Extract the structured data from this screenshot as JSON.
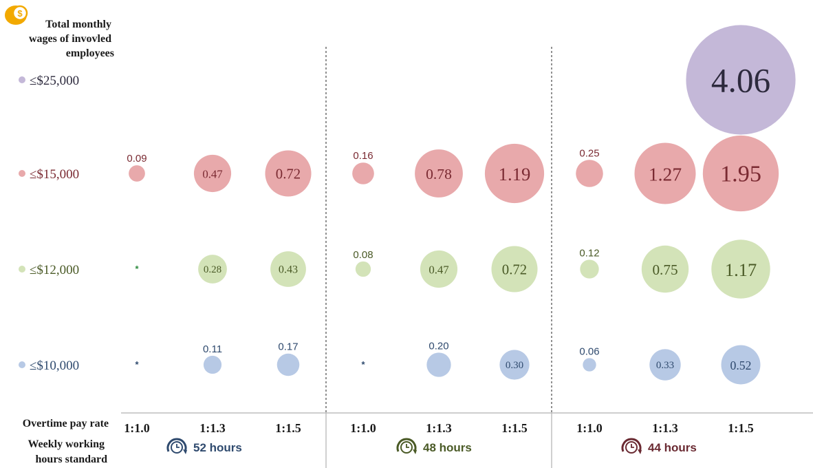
{
  "chart_data": {
    "type": "bubble",
    "legend_title": [
      "Total monthly",
      "wages of invovled",
      "employees"
    ],
    "rows": [
      {
        "label": "≤$25,000",
        "color": "#c4b8d8",
        "text_color": "#2d2a3d"
      },
      {
        "label": "≤$15,000",
        "color": "#e8a9ab",
        "text_color": "#7a2a32"
      },
      {
        "label": "≤$12,000",
        "color": "#d3e3b8",
        "text_color": "#4a5a26"
      },
      {
        "label": "≤$10,000",
        "color": "#b7c9e5",
        "text_color": "#2f4a6e"
      }
    ],
    "overtime_axis_title": "Overtime pay rate",
    "weekly_axis_title": [
      "Weekly working",
      "hours standard"
    ],
    "groups": [
      {
        "label": "52 hours",
        "color": "#2f4a6e",
        "rates": [
          "1:1.0",
          "1:1.3",
          "1:1.5"
        ]
      },
      {
        "label": "48 hours",
        "color": "#4a5a26",
        "rates": [
          "1:1.0",
          "1:1.3",
          "1:1.5"
        ]
      },
      {
        "label": "44 hours",
        "color": "#6a2a32",
        "rates": [
          "1:1.0",
          "1:1.3",
          "1:1.5"
        ]
      }
    ],
    "points": [
      {
        "group": 0,
        "rate": 0,
        "row": 1,
        "value": 0.09,
        "label": "0.09"
      },
      {
        "group": 0,
        "rate": 1,
        "row": 1,
        "value": 0.47,
        "label": "0.47"
      },
      {
        "group": 0,
        "rate": 2,
        "row": 1,
        "value": 0.72,
        "label": "0.72"
      },
      {
        "group": 1,
        "rate": 0,
        "row": 1,
        "value": 0.16,
        "label": "0.16"
      },
      {
        "group": 1,
        "rate": 1,
        "row": 1,
        "value": 0.78,
        "label": "0.78"
      },
      {
        "group": 1,
        "rate": 2,
        "row": 1,
        "value": 1.19,
        "label": "1.19"
      },
      {
        "group": 2,
        "rate": 0,
        "row": 1,
        "value": 0.25,
        "label": "0.25"
      },
      {
        "group": 2,
        "rate": 1,
        "row": 1,
        "value": 1.27,
        "label": "1.27"
      },
      {
        "group": 2,
        "rate": 2,
        "row": 1,
        "value": 1.95,
        "label": "1.95"
      },
      {
        "group": 0,
        "rate": 0,
        "row": 2,
        "value": 0.0,
        "label": ""
      },
      {
        "group": 0,
        "rate": 1,
        "row": 2,
        "value": 0.28,
        "label": "0.28"
      },
      {
        "group": 0,
        "rate": 2,
        "row": 2,
        "value": 0.43,
        "label": "0.43"
      },
      {
        "group": 1,
        "rate": 0,
        "row": 2,
        "value": 0.08,
        "label": "0.08"
      },
      {
        "group": 1,
        "rate": 1,
        "row": 2,
        "value": 0.47,
        "label": "0.47"
      },
      {
        "group": 1,
        "rate": 2,
        "row": 2,
        "value": 0.72,
        "label": "0.72"
      },
      {
        "group": 2,
        "rate": 0,
        "row": 2,
        "value": 0.12,
        "label": "0.12"
      },
      {
        "group": 2,
        "rate": 1,
        "row": 2,
        "value": 0.75,
        "label": "0.75"
      },
      {
        "group": 2,
        "rate": 2,
        "row": 2,
        "value": 1.17,
        "label": "1.17"
      },
      {
        "group": 0,
        "rate": 0,
        "row": 3,
        "value": 0.0,
        "label": ""
      },
      {
        "group": 0,
        "rate": 1,
        "row": 3,
        "value": 0.11,
        "label": "0.11"
      },
      {
        "group": 0,
        "rate": 2,
        "row": 3,
        "value": 0.17,
        "label": "0.17"
      },
      {
        "group": 1,
        "rate": 0,
        "row": 3,
        "value": 0.0,
        "label": ""
      },
      {
        "group": 1,
        "rate": 1,
        "row": 3,
        "value": 0.2,
        "label": "0.20"
      },
      {
        "group": 1,
        "rate": 2,
        "row": 3,
        "value": 0.3,
        "label": "0.30"
      },
      {
        "group": 2,
        "rate": 0,
        "row": 3,
        "value": 0.06,
        "label": "0.06"
      },
      {
        "group": 2,
        "rate": 1,
        "row": 3,
        "value": 0.33,
        "label": "0.33"
      },
      {
        "group": 2,
        "rate": 2,
        "row": 3,
        "value": 0.52,
        "label": "0.52"
      },
      {
        "group": 2,
        "rate": 2,
        "row": 0,
        "value": 4.06,
        "label": "4.06"
      }
    ],
    "icons": {
      "legend": "dollar-coin-icon",
      "groups": "clock-icon"
    },
    "colors": {
      "coin": "#f2a900",
      "separator": "#555555"
    }
  }
}
